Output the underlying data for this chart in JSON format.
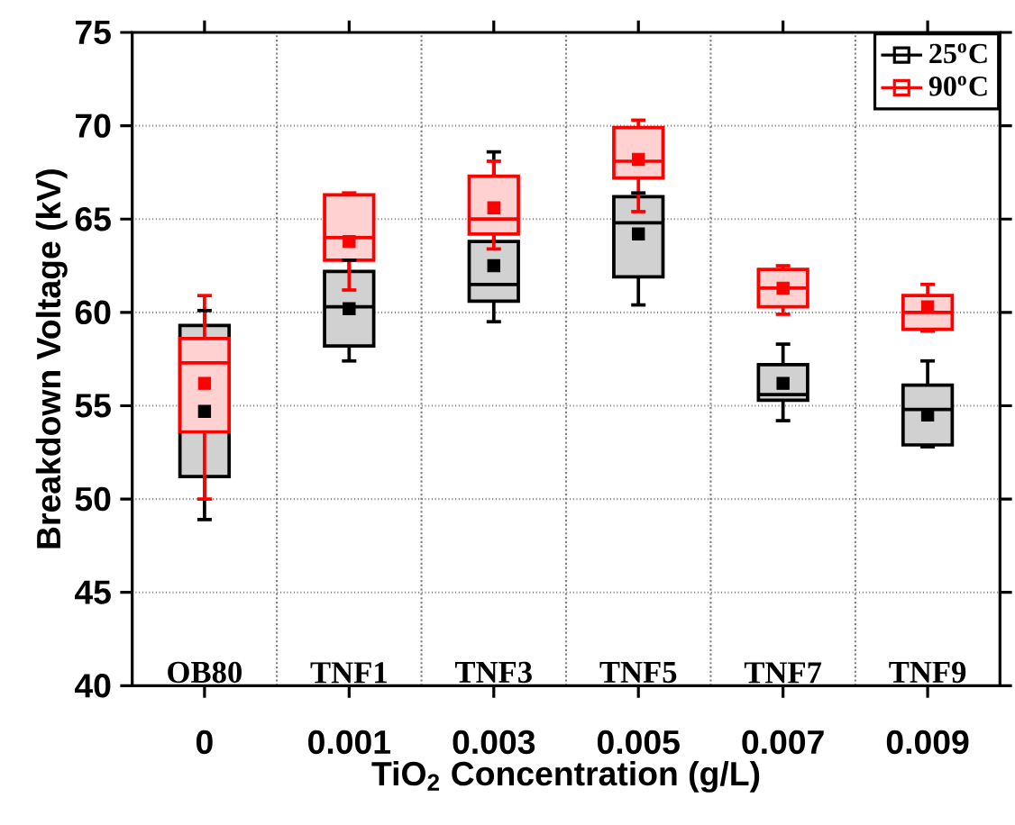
{
  "chart_data": {
    "type": "box",
    "xlabel": "TiO$_{2}$ Concentration (g/L)",
    "ylabel": "Breakdown Voltage (kV)",
    "categories": [
      "0",
      "0.001",
      "0.003",
      "0.005",
      "0.007",
      "0.009"
    ],
    "ylim": [
      40,
      75
    ],
    "yticks": [
      40,
      45,
      50,
      55,
      60,
      65,
      70,
      75
    ],
    "grid": true,
    "legend": "top right",
    "annotations": [
      "OB80",
      "TNF1",
      "TNF3",
      "TNF5",
      "TNF7",
      "TNF9"
    ],
    "series": [
      {
        "name": "25$^{o}$C",
        "color": "#000000",
        "boxes": [
          {
            "low": 48.9,
            "q1": 51.2,
            "median": 53.8,
            "q3": 59.3,
            "high": 60.1,
            "mean": 54.7
          },
          {
            "low": 57.4,
            "q1": 58.2,
            "median": 60.3,
            "q3": 62.2,
            "high": 62.8,
            "mean": 60.2
          },
          {
            "low": 59.5,
            "q1": 60.6,
            "median": 61.5,
            "q3": 63.8,
            "high": 68.6,
            "mean": 62.5
          },
          {
            "low": 60.4,
            "q1": 61.9,
            "median": 64.8,
            "q3": 66.2,
            "high": 66.4,
            "mean": 64.2
          },
          {
            "low": 54.2,
            "q1": 55.3,
            "median": 55.6,
            "q3": 57.2,
            "high": 58.3,
            "mean": 56.2
          },
          {
            "low": 52.8,
            "q1": 52.9,
            "median": 54.8,
            "q3": 56.1,
            "high": 57.4,
            "mean": 54.5
          }
        ]
      },
      {
        "name": "90$^{o}$C",
        "color": "#ff0000",
        "boxes": [
          {
            "low": 50.0,
            "q1": 53.6,
            "median": 57.3,
            "q3": 58.6,
            "high": 60.9,
            "mean": 56.2
          },
          {
            "low": 61.2,
            "q1": 62.8,
            "median": 64.0,
            "q3": 66.3,
            "high": 66.4,
            "mean": 63.8
          },
          {
            "low": 63.4,
            "q1": 64.2,
            "median": 65.0,
            "q3": 67.3,
            "high": 68.1,
            "mean": 65.6
          },
          {
            "low": 65.4,
            "q1": 67.2,
            "median": 68.1,
            "q3": 69.9,
            "high": 70.3,
            "mean": 68.2
          },
          {
            "low": 59.9,
            "q1": 60.3,
            "median": 61.3,
            "q3": 62.3,
            "high": 62.5,
            "mean": 61.3
          },
          {
            "low": 59.0,
            "q1": 59.1,
            "median": 60.0,
            "q3": 60.9,
            "high": 61.5,
            "mean": 60.3
          }
        ]
      }
    ]
  }
}
